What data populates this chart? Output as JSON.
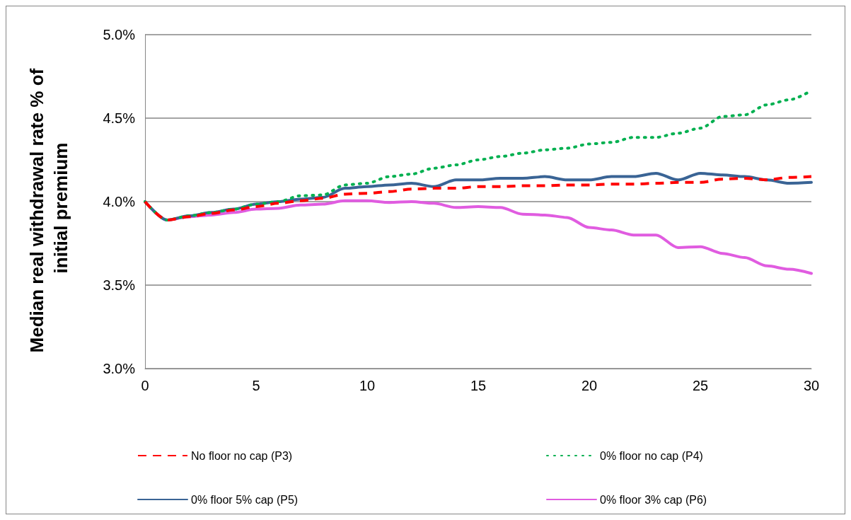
{
  "chart_data": {
    "type": "line",
    "ylabel": "Median real withdrawal rate % of initial premium",
    "x": [
      0,
      1,
      2,
      3,
      4,
      5,
      6,
      7,
      8,
      9,
      10,
      11,
      12,
      13,
      14,
      15,
      16,
      17,
      18,
      19,
      20,
      21,
      22,
      23,
      24,
      25,
      26,
      27,
      28,
      29,
      30
    ],
    "xlim": [
      0,
      30
    ],
    "xticks": [
      0,
      5,
      10,
      15,
      20,
      25,
      30
    ],
    "ylim": [
      3,
      5
    ],
    "yticks": [
      {
        "value": 3,
        "label": "3.0%"
      },
      {
        "value": 3.5,
        "label": "3.5%"
      },
      {
        "value": 4,
        "label": "4.0%"
      },
      {
        "value": 4.5,
        "label": "4.5%"
      },
      {
        "value": 5,
        "label": "5.0%"
      }
    ],
    "grid": "y",
    "legend": "bottom",
    "marker": "none",
    "series": [
      {
        "name": "No floor no cap (P3)",
        "color": "#ff0000",
        "line_style": "dashed",
        "values": [
          4.0,
          3.89,
          3.91,
          3.93,
          3.95,
          3.97,
          3.99,
          4.005,
          4.02,
          4.045,
          4.05,
          4.06,
          4.075,
          4.08,
          4.08,
          4.09,
          4.09,
          4.095,
          4.095,
          4.1,
          4.1,
          4.105,
          4.105,
          4.11,
          4.115,
          4.115,
          4.135,
          4.14,
          4.13,
          4.145,
          4.15
        ]
      },
      {
        "name": "0% floor no cap (P4)",
        "color": "#00b050",
        "line_style": "dotted",
        "values": [
          4.0,
          3.89,
          3.915,
          3.935,
          3.955,
          3.985,
          4.0,
          4.035,
          4.04,
          4.1,
          4.11,
          4.15,
          4.165,
          4.2,
          4.22,
          4.25,
          4.27,
          4.29,
          4.31,
          4.32,
          4.345,
          4.355,
          4.385,
          4.385,
          4.41,
          4.44,
          4.51,
          4.52,
          4.58,
          4.61,
          4.665
        ]
      },
      {
        "name": "0% floor 5% cap (P5)",
        "color": "#3a6495",
        "line_style": "solid",
        "values": [
          4.0,
          3.89,
          3.915,
          3.935,
          3.955,
          3.985,
          4.0,
          4.015,
          4.025,
          4.08,
          4.09,
          4.1,
          4.11,
          4.09,
          4.13,
          4.13,
          4.14,
          4.14,
          4.15,
          4.13,
          4.13,
          4.15,
          4.15,
          4.17,
          4.13,
          4.17,
          4.16,
          4.15,
          4.13,
          4.11,
          4.115
        ]
      },
      {
        "name": "0% floor 3% cap (P6)",
        "color": "#e05ce0",
        "line_style": "solid",
        "values": [
          4.0,
          3.89,
          3.91,
          3.92,
          3.935,
          3.955,
          3.96,
          3.98,
          3.985,
          4.005,
          4.005,
          3.995,
          4.0,
          3.99,
          3.965,
          3.97,
          3.965,
          3.925,
          3.92,
          3.905,
          3.845,
          3.83,
          3.8,
          3.8,
          3.725,
          3.73,
          3.69,
          3.665,
          3.615,
          3.595,
          3.57
        ]
      }
    ]
  }
}
